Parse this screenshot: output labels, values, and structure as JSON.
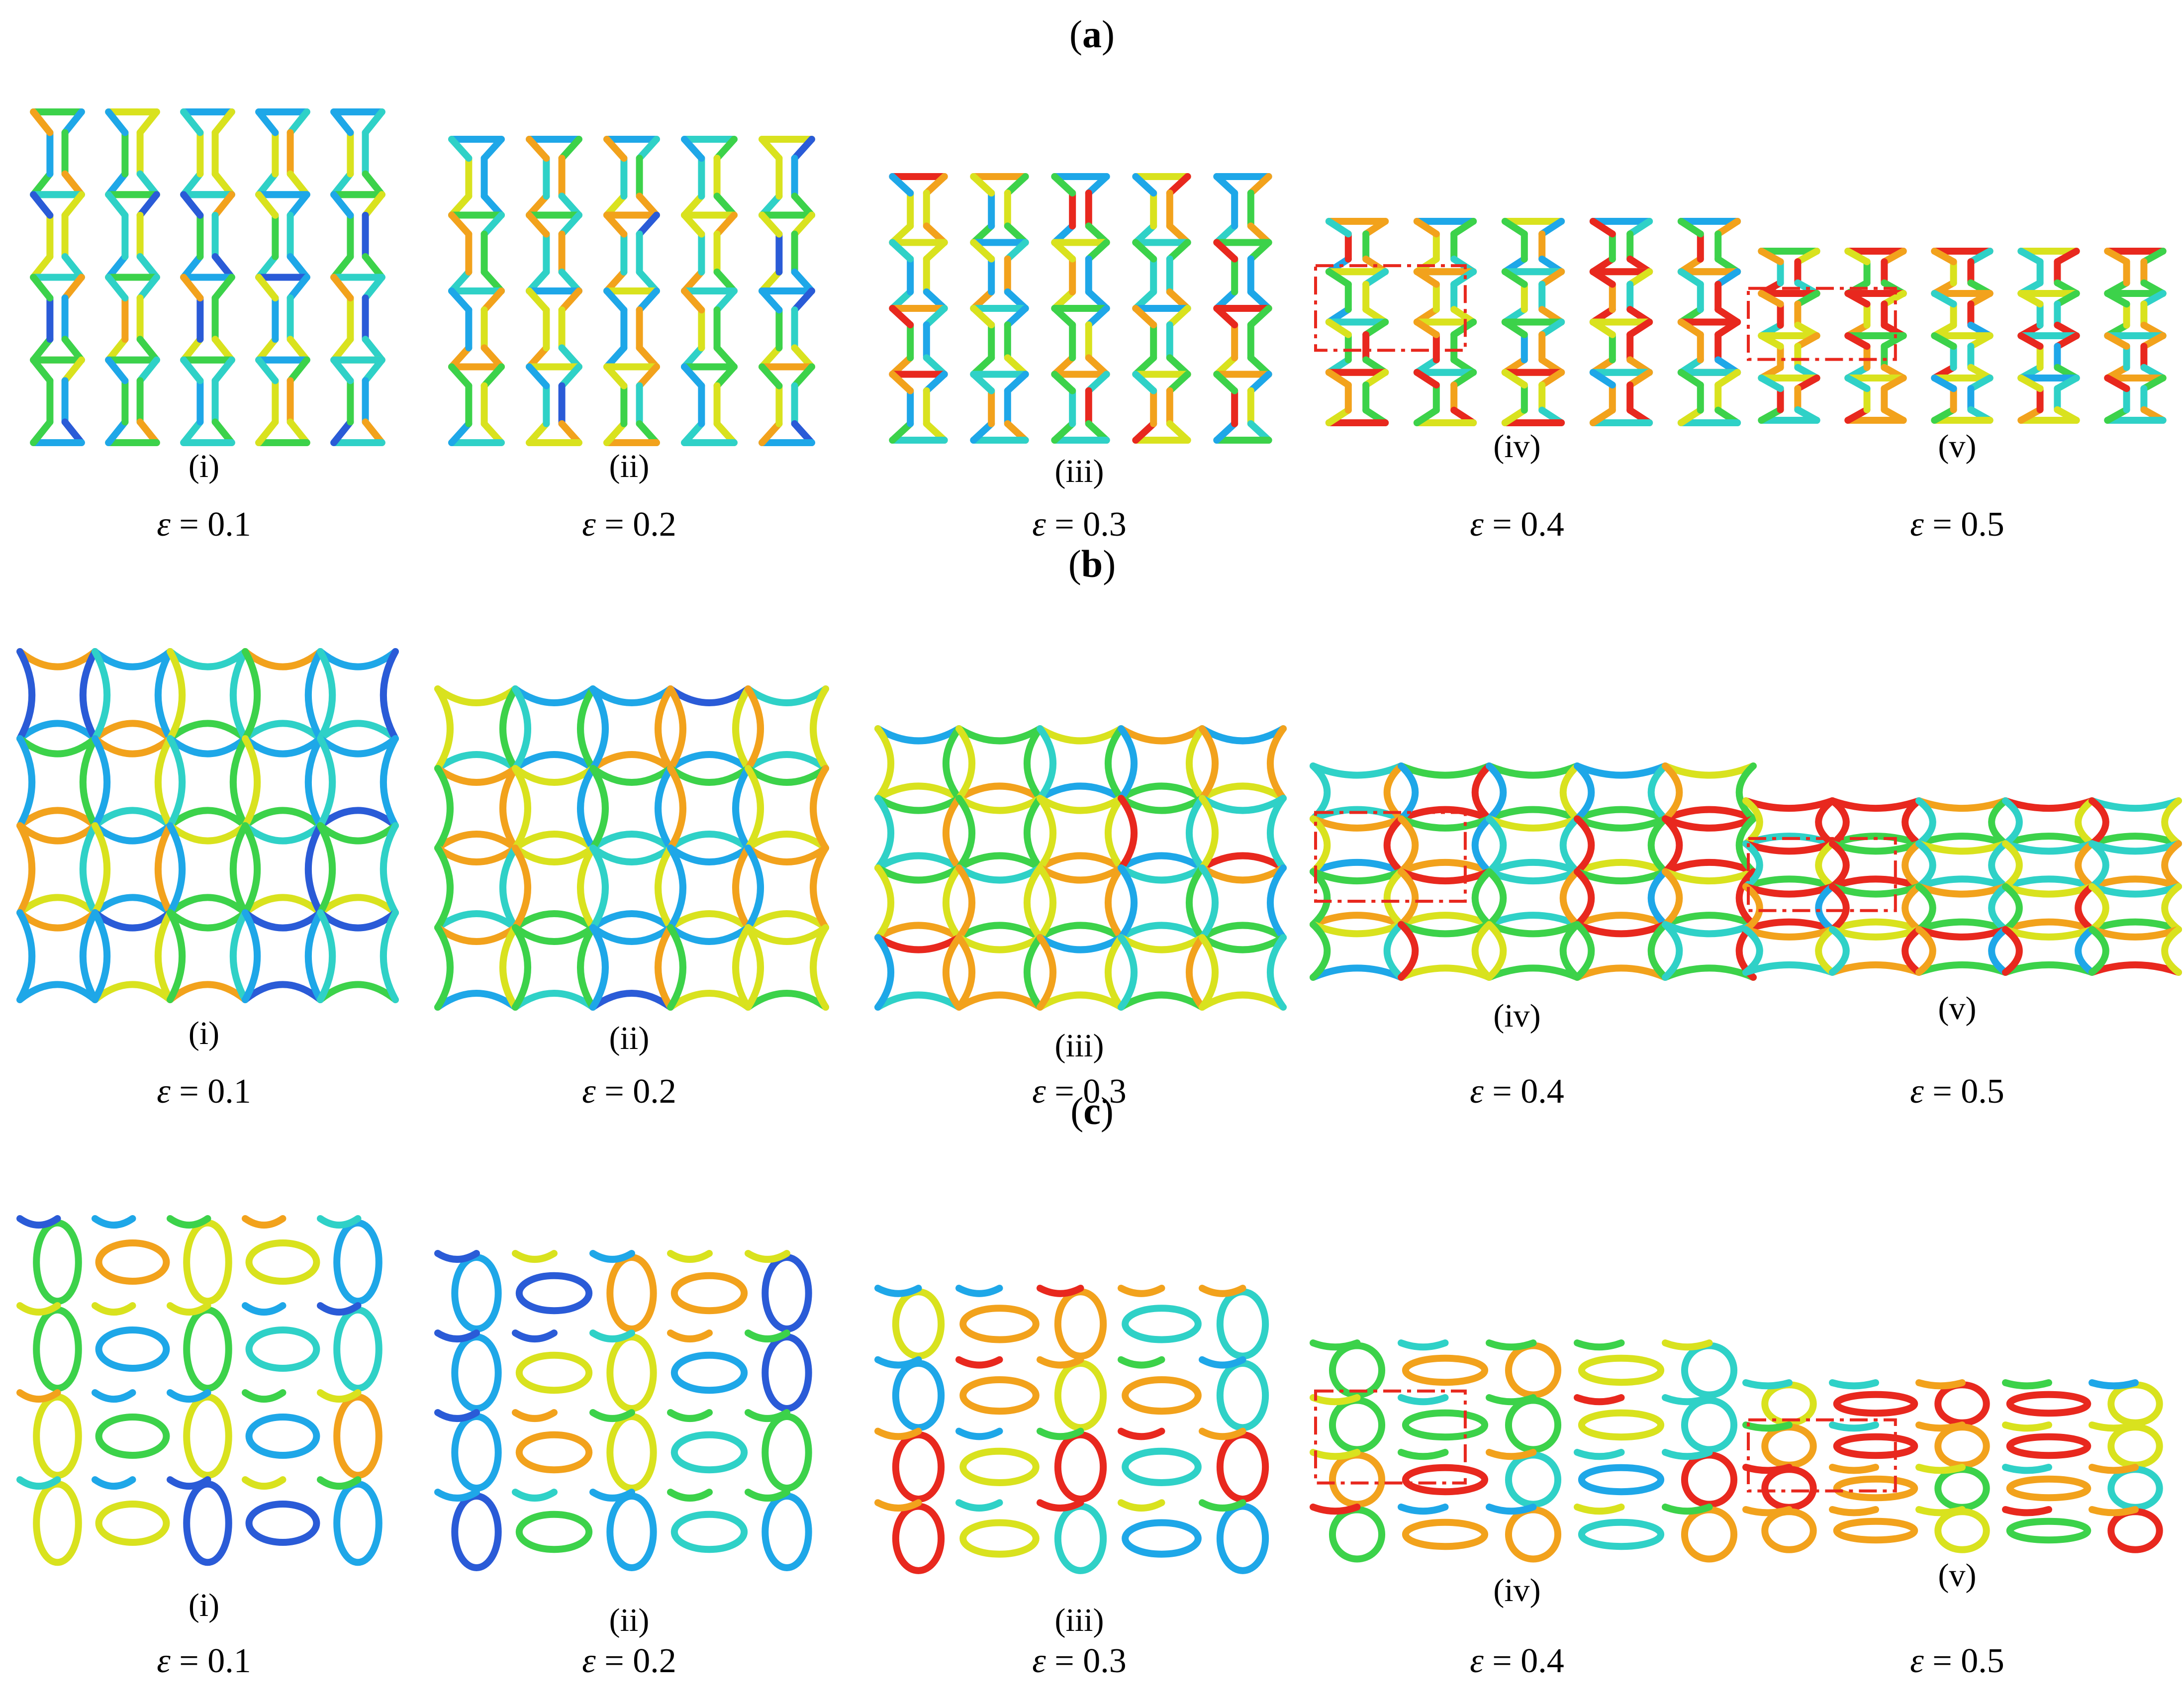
{
  "figure": {
    "sections": [
      {
        "id": "a",
        "label_open": "(",
        "label_letter": "a",
        "label_close": ")",
        "shape": "reentrant-hexagon",
        "panels": [
          {
            "caption": "(i)",
            "strain_symbol": "ε",
            "strain_text": " = 0.1",
            "strain": 0.1,
            "highlight": false
          },
          {
            "caption": "(ii)",
            "strain_symbol": "ε",
            "strain_text": " = 0.2",
            "strain": 0.2,
            "highlight": false
          },
          {
            "caption": "(iii)",
            "strain_symbol": "ε",
            "strain_text": " = 0.3",
            "strain": 0.3,
            "highlight": false
          },
          {
            "caption": "(iv)",
            "strain_symbol": "ε",
            "strain_text": " = 0.4",
            "strain": 0.4,
            "highlight": true
          },
          {
            "caption": "(v)",
            "strain_symbol": "ε",
            "strain_text": " = 0.5",
            "strain": 0.5,
            "highlight": true
          }
        ]
      },
      {
        "id": "b",
        "label_open": "(",
        "label_letter": "b",
        "label_close": ")",
        "shape": "curved-reentrant",
        "panels": [
          {
            "caption": "(i)",
            "strain_symbol": "ε",
            "strain_text": " = 0.1",
            "strain": 0.1,
            "highlight": false
          },
          {
            "caption": "(ii)",
            "strain_symbol": "ε",
            "strain_text": " = 0.2",
            "strain": 0.2,
            "highlight": false
          },
          {
            "caption": "(iii)",
            "strain_symbol": "ε",
            "strain_text": " = 0.3",
            "strain": 0.3,
            "highlight": false
          },
          {
            "caption": "(iv)",
            "strain_symbol": "ε",
            "strain_text": " = 0.4",
            "strain": 0.4,
            "highlight": true
          },
          {
            "caption": "(v)",
            "strain_symbol": "ε",
            "strain_text": " = 0.5",
            "strain": 0.5,
            "highlight": true
          }
        ]
      },
      {
        "id": "c",
        "label_open": "(",
        "label_letter": "c",
        "label_close": ")",
        "shape": "elliptical",
        "panels": [
          {
            "caption": "(i)",
            "strain_symbol": "ε",
            "strain_text": " = 0.1",
            "strain": 0.1,
            "highlight": false
          },
          {
            "caption": "(ii)",
            "strain_symbol": "ε",
            "strain_text": " = 0.2",
            "strain": 0.2,
            "highlight": false
          },
          {
            "caption": "(iii)",
            "strain_symbol": "ε",
            "strain_text": " = 0.3",
            "strain": 0.3,
            "highlight": false
          },
          {
            "caption": "(iv)",
            "strain_symbol": "ε",
            "strain_text": " = 0.4",
            "strain": 0.4,
            "highlight": true
          },
          {
            "caption": "(v)",
            "strain_symbol": "ε",
            "strain_text": " = 0.5",
            "strain": 0.5,
            "highlight": true
          }
        ]
      }
    ],
    "colors": {
      "stress_scale": [
        "#2a5bd7",
        "#1ea7e8",
        "#2fd1c7",
        "#3cd24a",
        "#d9e21e",
        "#f2a21c",
        "#e8281e"
      ],
      "highlight_box": "#e8281e"
    }
  }
}
